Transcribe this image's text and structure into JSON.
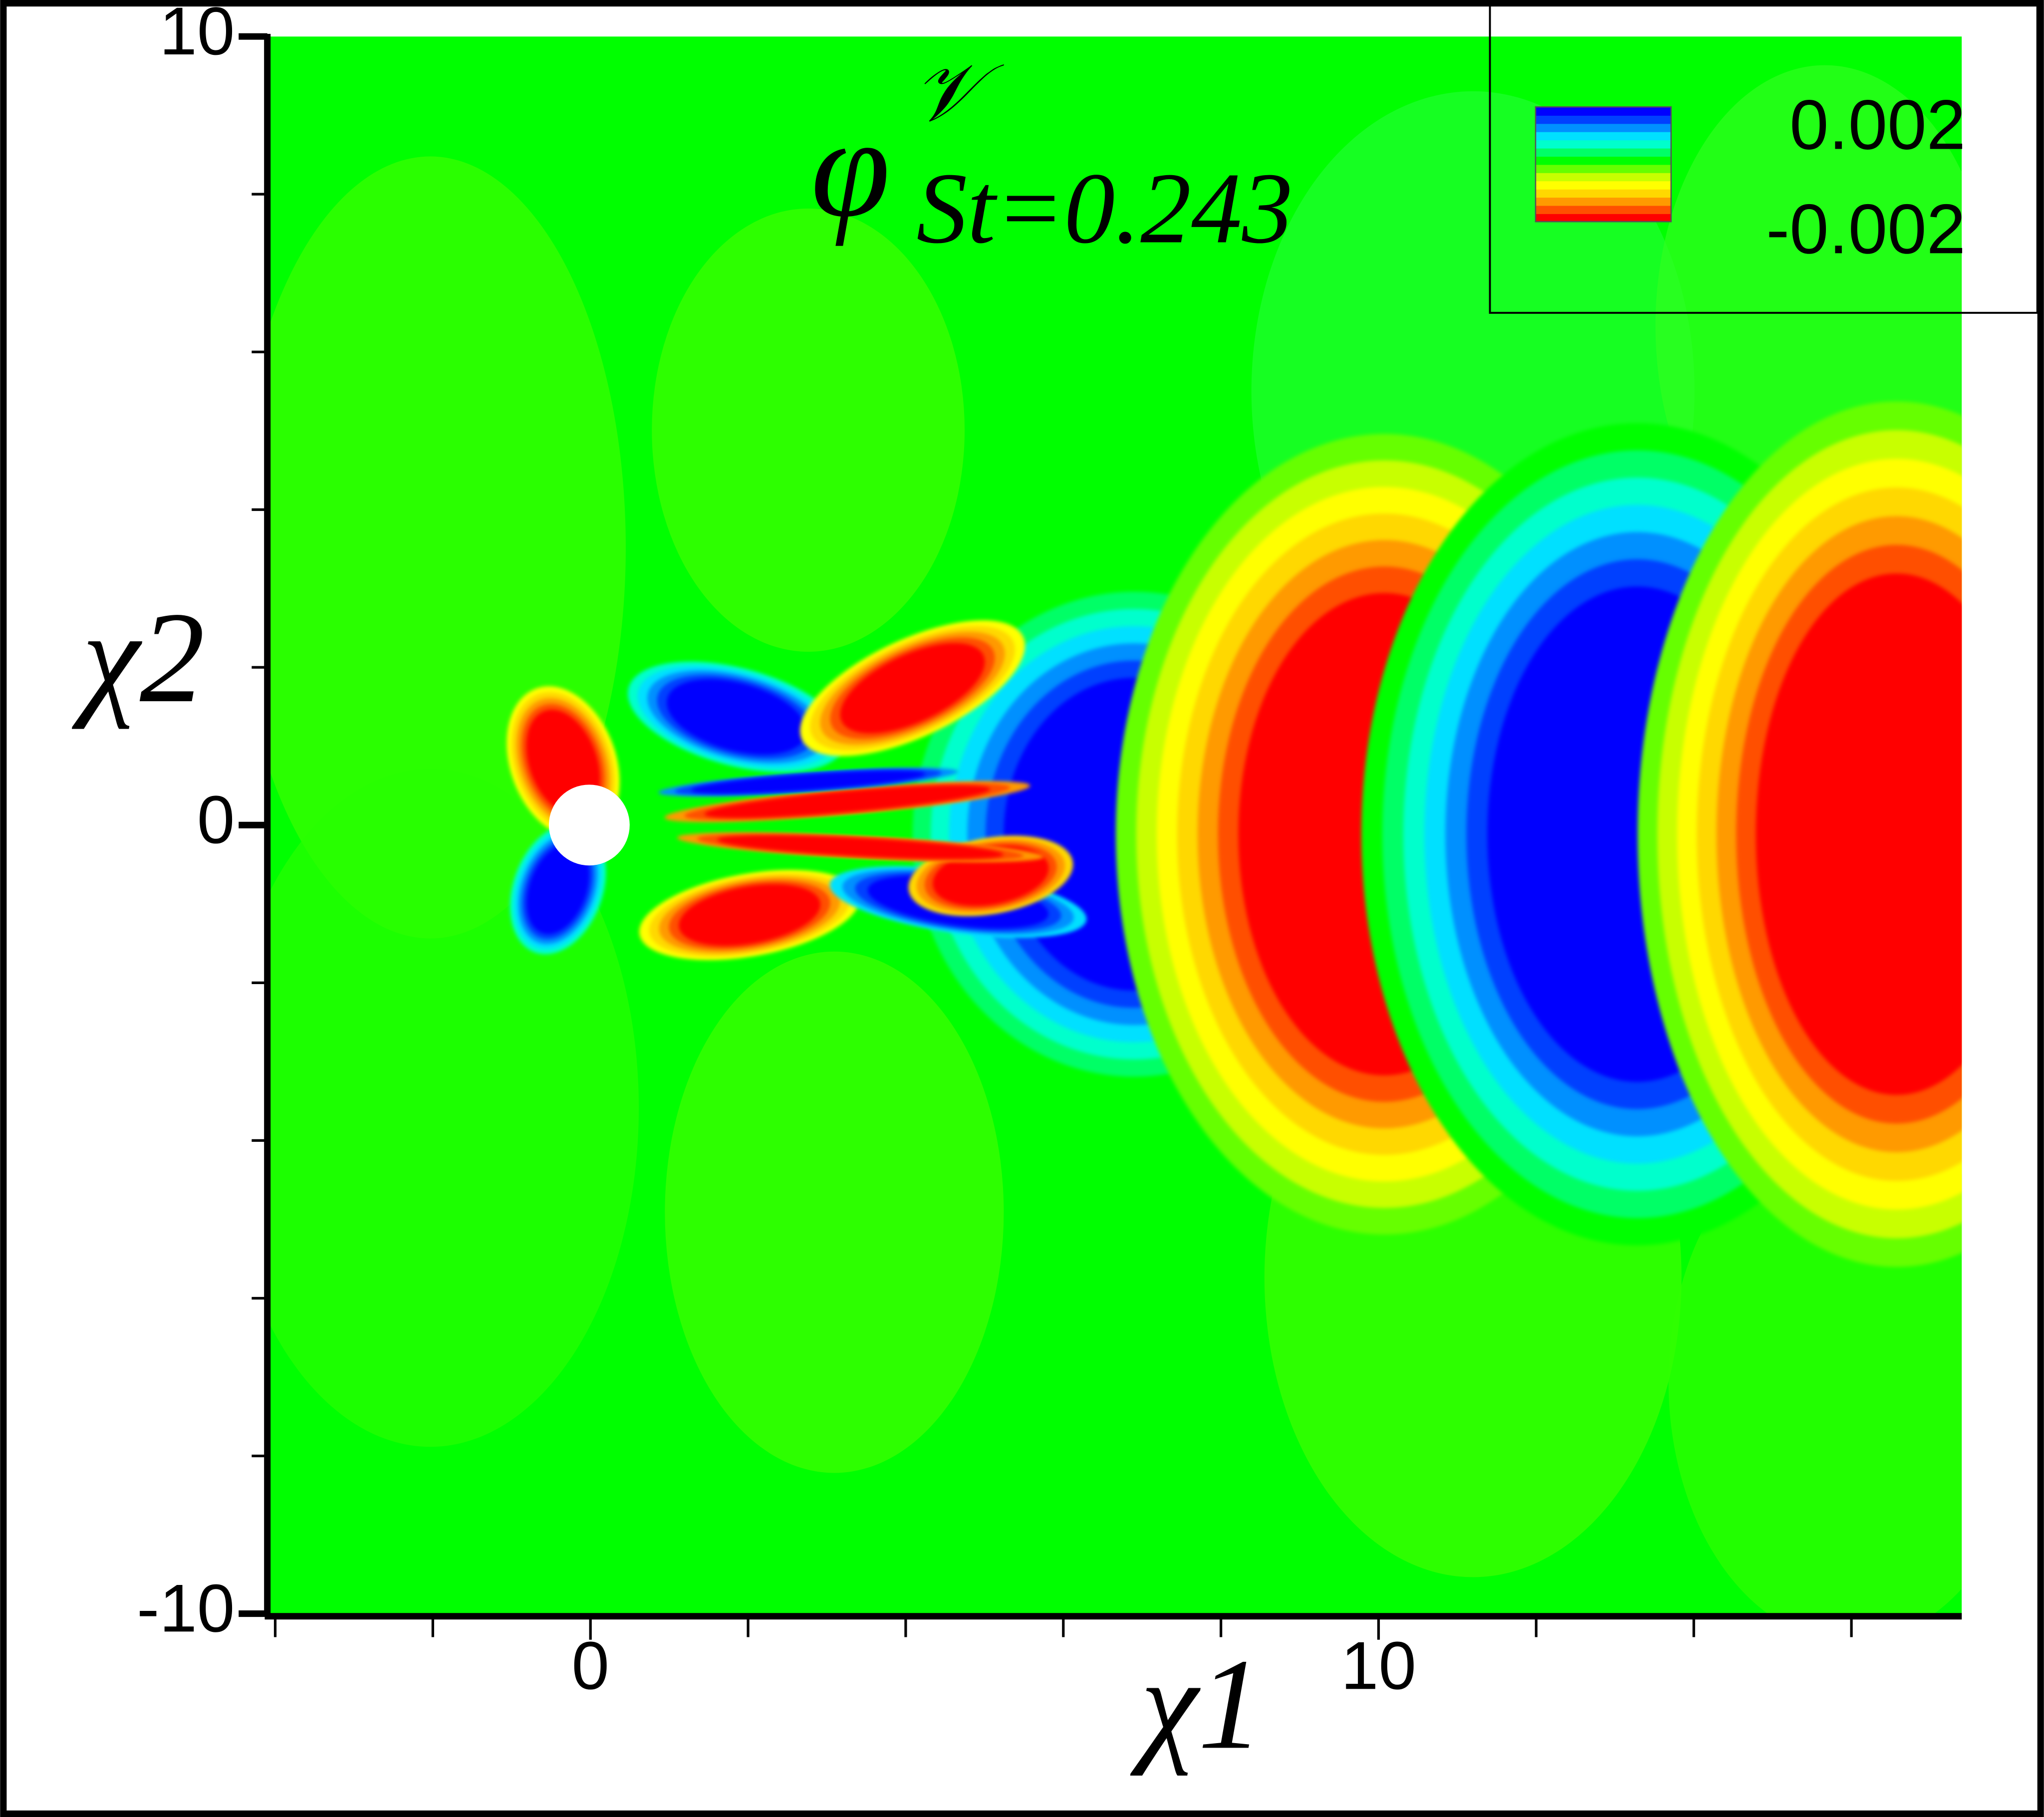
{
  "chart_data": {
    "type": "contour",
    "title": {
      "symbol": "φ",
      "superscript": "𝒱",
      "subscript": "St=0.243"
    },
    "x_label": "χ1",
    "y_label": "χ2",
    "xlim": [
      -4.1,
      17.4
    ],
    "ylim": [
      -10,
      10
    ],
    "xticks": [
      0,
      10
    ],
    "xminor_ticks": [
      -4,
      -2,
      2,
      4,
      6,
      8,
      12,
      14,
      16
    ],
    "yticks": [
      -10,
      0,
      10
    ],
    "yminor_ticks": [
      -8,
      -6,
      -4,
      -2,
      2,
      4,
      6,
      8
    ],
    "clim": [
      -0.002,
      0.002
    ],
    "colorbar_ticks": [
      0.002,
      -0.002
    ],
    "colormap": [
      "#ff0000",
      "#ff5000",
      "#ff9a00",
      "#ffd800",
      "#ffff00",
      "#c8ff00",
      "#66ff00",
      "#00ff00",
      "#00ff66",
      "#00ffcc",
      "#00e0ff",
      "#0090ff",
      "#0040ff",
      "#0000ff"
    ]
  }
}
